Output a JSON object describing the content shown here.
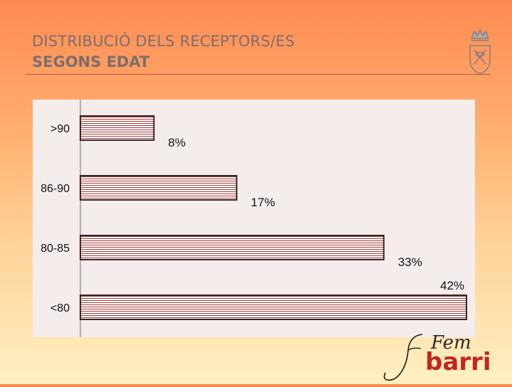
{
  "slide": {
    "title_line1": "DISTRIBUCIÓ DELS RECEPTORS/ES",
    "title_line2": "SEGONS EDAT"
  },
  "logo": {
    "text": "barri",
    "script_text": "Fem"
  },
  "colors": {
    "bar_stroke": "#3a2424",
    "bar_fill": "#ffffff",
    "bar_hatch": "#a03a3a",
    "axis": "#999999",
    "rule": "#c0504d"
  },
  "chart_data": {
    "type": "bar",
    "orientation": "horizontal",
    "categories": [
      ">90",
      "86-90",
      "80-85",
      "<80"
    ],
    "values": [
      8,
      17,
      33,
      42
    ],
    "labels": [
      "8%",
      "17%",
      "33%",
      "42%"
    ],
    "xlim": [
      0,
      42
    ],
    "grid": false
  }
}
